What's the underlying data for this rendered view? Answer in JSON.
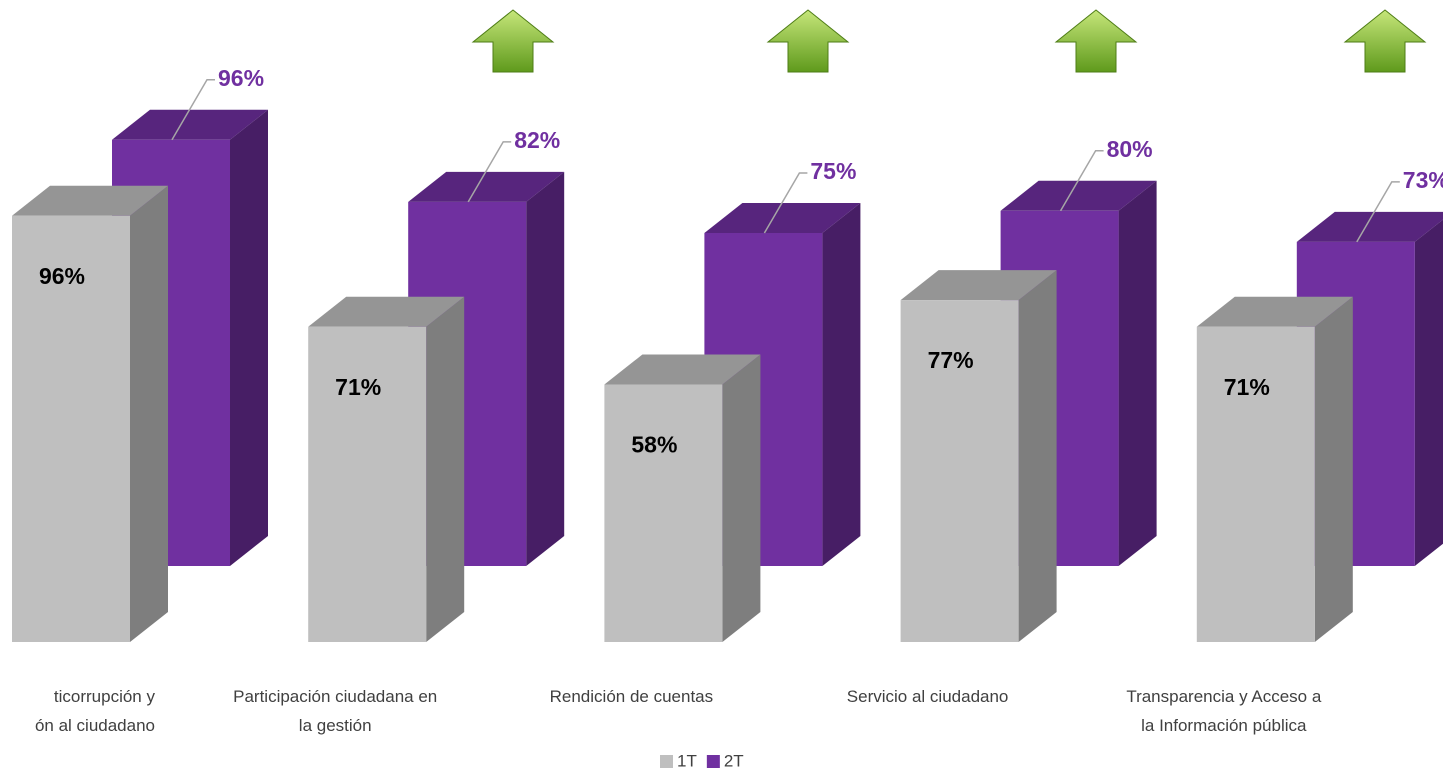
{
  "chart_data": {
    "type": "bar3d",
    "categories": [
      "ticorrupción y\nón al ciudadano",
      "Participación ciudadana en\nla gestión",
      "Rendición de cuentas",
      "Servicio al ciudadano",
      "Transparencia y Acceso a\nla Información pública"
    ],
    "series": [
      {
        "name": "1T",
        "color": "#bfbfbf",
        "values": [
          96,
          71,
          58,
          77,
          71
        ],
        "value_labels": [
          "96%",
          "71%",
          "58%",
          "77%",
          "71%"
        ]
      },
      {
        "name": "2T",
        "color": "#7030a0",
        "values": [
          96,
          82,
          75,
          80,
          73
        ],
        "value_labels": [
          "96%",
          "82%",
          "75%",
          "80%",
          "73%"
        ]
      }
    ],
    "ylim": [
      0,
      100
    ],
    "legend": "bottom"
  }
}
